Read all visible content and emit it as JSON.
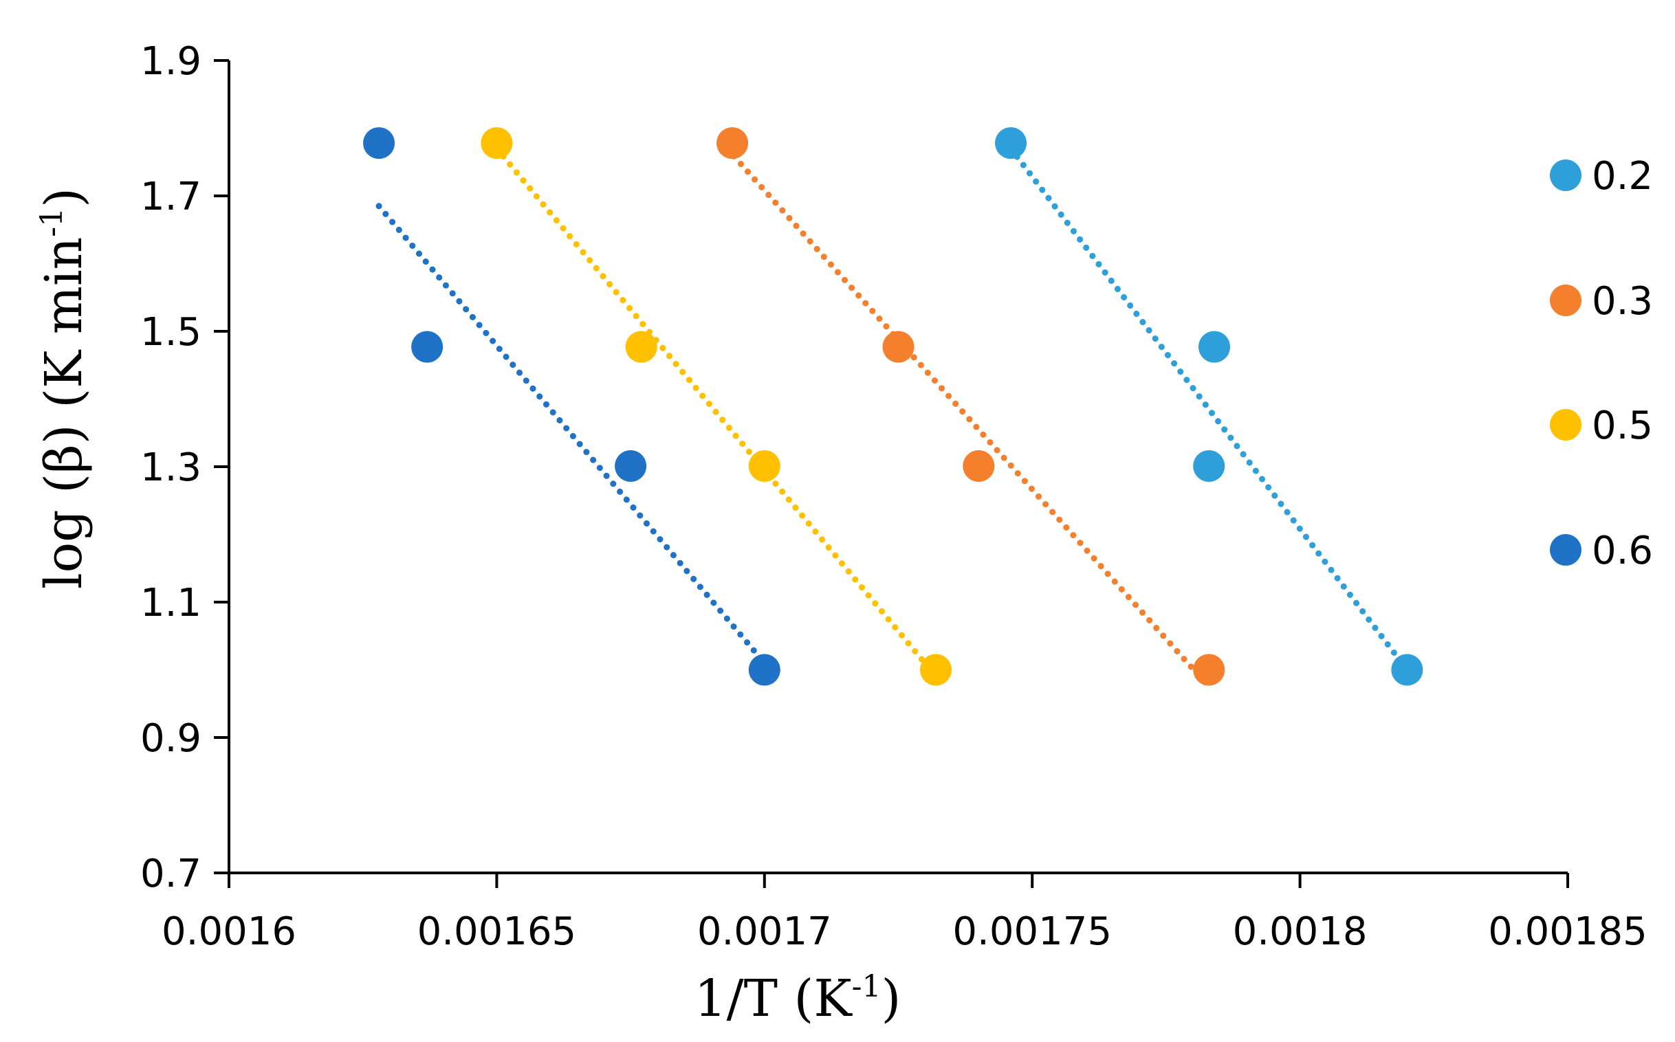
{
  "chart_data": {
    "type": "scatter",
    "title": "",
    "xlabel_main": "1/T (K",
    "xlabel_sup": "-1",
    "xlabel_close": ")",
    "ylabel_main": "log (β) (K min",
    "ylabel_sup": "-1",
    "ylabel_close": ")",
    "xlim": [
      0.0016,
      0.00185
    ],
    "ylim": [
      0.7,
      1.9
    ],
    "x_ticks": [
      0.0016,
      0.00165,
      0.0017,
      0.00175,
      0.0018,
      0.00185
    ],
    "x_tick_labels": [
      "0.0016",
      "0.00165",
      "0.0017",
      "0.00175",
      "0.0018",
      "0.00185"
    ],
    "y_ticks": [
      0.7,
      0.9,
      1.1,
      1.3,
      1.5,
      1.7,
      1.9
    ],
    "y_tick_labels": [
      "0.7",
      "0.9",
      "1.1",
      "1.3",
      "1.5",
      "1.7",
      "1.9"
    ],
    "grid": false,
    "legend_position": "right",
    "series": [
      {
        "name": "0.2",
        "color": "#2F9FDA",
        "points": [
          [
            0.001746,
            1.778
          ],
          [
            0.001784,
            1.477
          ],
          [
            0.001783,
            1.301
          ],
          [
            0.00182,
            1.0
          ]
        ],
        "trendline": [
          [
            0.001746,
            1.77
          ],
          [
            0.00182,
            1.0
          ]
        ]
      },
      {
        "name": "0.3",
        "color": "#F47F2C",
        "points": [
          [
            0.001694,
            1.778
          ],
          [
            0.001725,
            1.477
          ],
          [
            0.00174,
            1.301
          ],
          [
            0.001783,
            1.0
          ]
        ],
        "trendline": [
          [
            0.001693,
            1.77
          ],
          [
            0.001783,
            0.975
          ]
        ]
      },
      {
        "name": "0.5",
        "color": "#FFC000",
        "points": [
          [
            0.00165,
            1.778
          ],
          [
            0.001677,
            1.477
          ],
          [
            0.0017,
            1.301
          ],
          [
            0.001732,
            1.0
          ]
        ],
        "trendline": [
          [
            0.00165,
            1.77
          ],
          [
            0.001731,
            1.0
          ]
        ]
      },
      {
        "name": "0.6",
        "color": "#1F72C6",
        "points": [
          [
            0.001628,
            1.778
          ],
          [
            0.001637,
            1.477
          ],
          [
            0.001675,
            1.301
          ],
          [
            0.0017,
            1.0
          ]
        ],
        "trendline": [
          [
            0.001628,
            1.685
          ],
          [
            0.0017,
            1.01
          ]
        ]
      }
    ]
  }
}
